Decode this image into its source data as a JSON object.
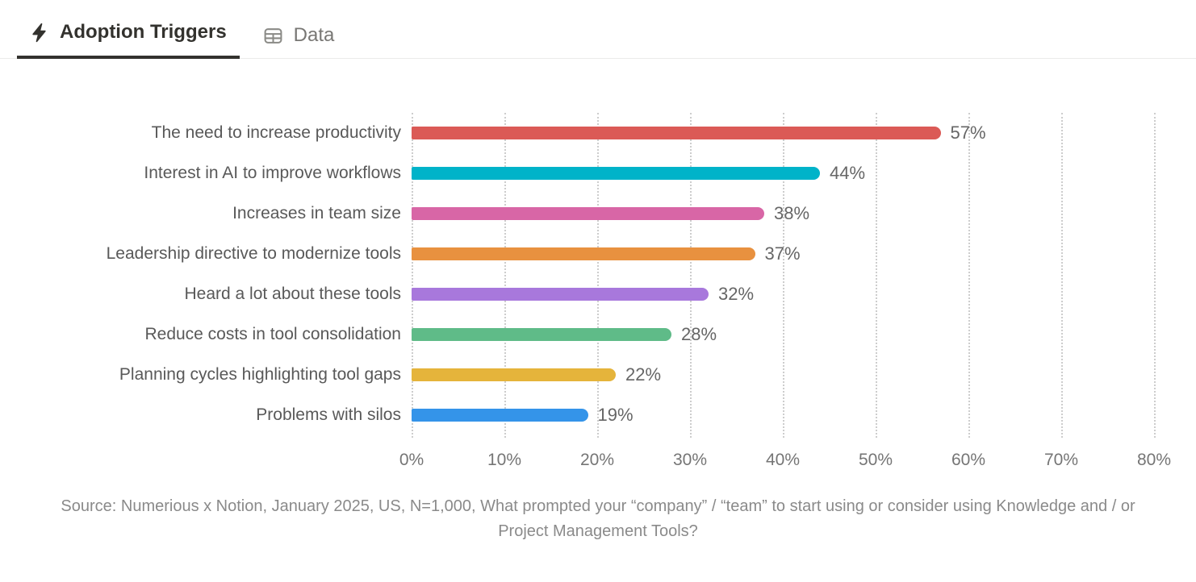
{
  "tabs": [
    {
      "label": "Adoption Triggers",
      "icon": "bolt-icon",
      "active": true
    },
    {
      "label": "Data",
      "icon": "table-icon",
      "active": false
    }
  ],
  "colors": {
    "active_tab": "#33322E",
    "inactive_tab": "#787774",
    "tab_underline": "#33322E",
    "gridline": "#CDCDCD",
    "category_label": "#595959",
    "value_label": "#666666",
    "tick_label": "#757575",
    "source_text": "#8A8A8A"
  },
  "chart_data": {
    "type": "bar",
    "orientation": "horizontal",
    "categories": [
      "The need to increase productivity",
      "Interest in AI to improve workflows",
      "Increases in team size",
      "Leadership directive to modernize tools",
      "Heard a lot about these tools",
      "Reduce costs in tool consolidation",
      "Planning cycles highlighting tool gaps",
      "Problems with silos"
    ],
    "values": [
      57,
      44,
      38,
      37,
      32,
      28,
      22,
      19
    ],
    "value_labels": [
      "57%",
      "44%",
      "38%",
      "37%",
      "32%",
      "28%",
      "22%",
      "19%"
    ],
    "bar_colors": [
      "#DB5A56",
      "#00B3C9",
      "#D866A6",
      "#E8913F",
      "#A878DC",
      "#5FBB88",
      "#E5B43B",
      "#3494E9"
    ],
    "x_ticks": [
      "0%",
      "10%",
      "20%",
      "30%",
      "40%",
      "50%",
      "60%",
      "70%",
      "80%"
    ],
    "xlim": [
      0,
      80
    ],
    "grid": "vertical-dotted",
    "title": "Adoption Triggers",
    "xlabel": "",
    "ylabel": ""
  },
  "source": {
    "text": "Source: Numerious x Notion, January 2025, US, N=1,000, What prompted your “company” / “team” to start using or consider using Knowledge and / or Project Management Tools?"
  }
}
